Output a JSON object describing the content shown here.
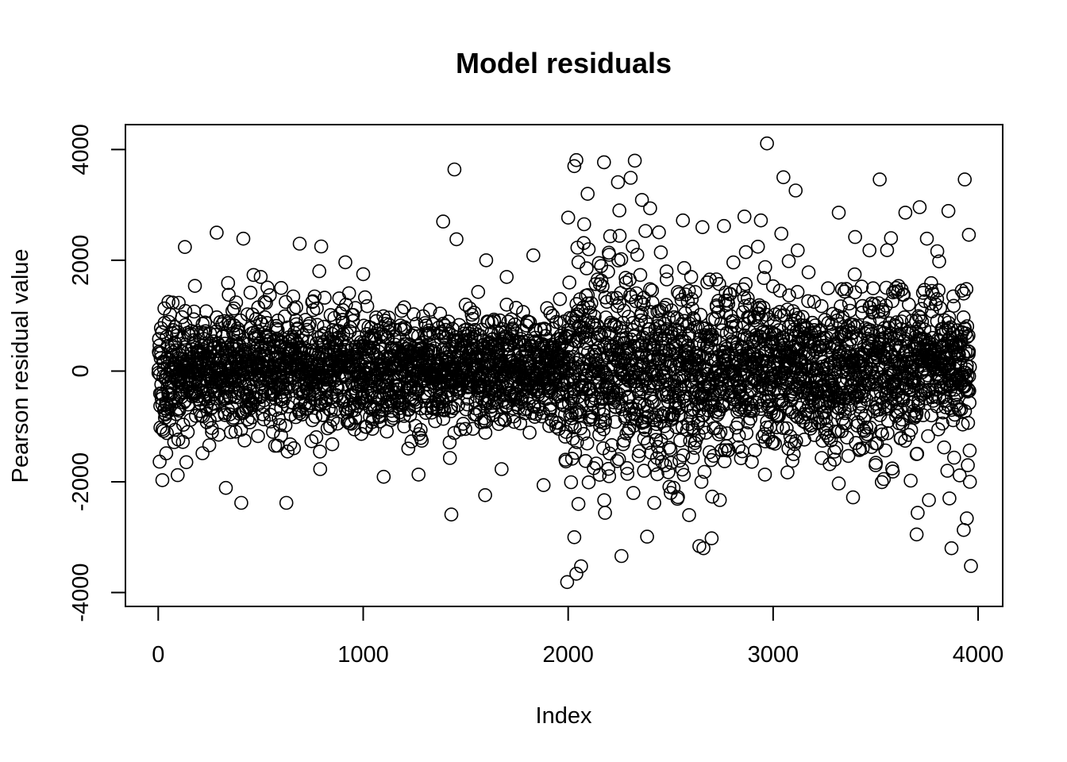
{
  "chart_data": {
    "type": "scatter",
    "title": "Model residuals",
    "xlabel": "Index",
    "ylabel": "Pearson residual value",
    "xlim": [
      -160,
      4120
    ],
    "ylim": [
      -4250,
      4450
    ],
    "x_ticks": [
      0,
      1000,
      2000,
      3000,
      4000
    ],
    "x_tick_labels": [
      "0",
      "1000",
      "2000",
      "3000",
      "4000"
    ],
    "y_ticks": [
      -4000,
      -2000,
      0,
      2000,
      4000
    ],
    "y_tick_labels": [
      "-4000",
      "-2000",
      "0",
      "2000",
      "4000"
    ],
    "grid": false,
    "legend": "none",
    "marker": "open-circle",
    "marker_color": "#000000",
    "n_points": 4000,
    "segments": [
      {
        "from": 1,
        "to": 1000,
        "sd": 700,
        "mean": 0
      },
      {
        "from": 1001,
        "to": 1980,
        "sd": 600,
        "mean": 0
      },
      {
        "from": 1981,
        "to": 2500,
        "sd": 1150,
        "mean": 0
      },
      {
        "from": 2501,
        "to": 3000,
        "sd": 1000,
        "mean": 0
      },
      {
        "from": 3001,
        "to": 3960,
        "sd": 850,
        "mean": 0
      }
    ],
    "series": [
      {
        "points": [
          [
            2970,
            4110
          ],
          [
            1445,
            3640
          ],
          [
            2040,
            3810
          ],
          [
            2325,
            3800
          ],
          [
            2175,
            3770
          ],
          [
            2030,
            3700
          ],
          [
            3520,
            3460
          ],
          [
            3935,
            3460
          ],
          [
            3050,
            3500
          ],
          [
            3110,
            3260
          ],
          [
            2305,
            3490
          ],
          [
            2360,
            3090
          ],
          [
            2095,
            3200
          ],
          [
            3715,
            2960
          ],
          [
            2400,
            2940
          ],
          [
            3320,
            2860
          ],
          [
            3855,
            2890
          ],
          [
            1390,
            2700
          ],
          [
            2560,
            2720
          ],
          [
            3645,
            2860
          ],
          [
            285,
            2500
          ],
          [
            415,
            2390
          ],
          [
            1455,
            2380
          ],
          [
            2000,
            2770
          ],
          [
            2860,
            2790
          ],
          [
            3040,
            2480
          ],
          [
            3955,
            2460
          ],
          [
            3750,
            2390
          ],
          [
            690,
            2300
          ],
          [
            130,
            2240
          ],
          [
            795,
            2250
          ],
          [
            3400,
            2420
          ],
          [
            3120,
            2180
          ],
          [
            1600,
            2000
          ],
          [
            1830,
            2090
          ],
          [
            2250,
            2900
          ],
          [
            2760,
            2620
          ],
          [
            2940,
            2720
          ],
          [
            3575,
            2400
          ],
          [
            3470,
            2180
          ],
          [
            3070,
            -1830
          ],
          [
            2030,
            -3000
          ],
          [
            2260,
            -3340
          ],
          [
            2640,
            -3160
          ],
          [
            2700,
            -3020
          ],
          [
            2420,
            -2380
          ],
          [
            2385,
            -2990
          ],
          [
            2960,
            -1870
          ],
          [
            3700,
            -2950
          ],
          [
            3870,
            -3200
          ],
          [
            3965,
            -3520
          ],
          [
            3945,
            -2660
          ],
          [
            3930,
            -2870
          ],
          [
            3705,
            -2560
          ],
          [
            3860,
            -2300
          ],
          [
            1995,
            -3810
          ],
          [
            2040,
            -3660
          ],
          [
            1430,
            -2590
          ],
          [
            625,
            -2380
          ],
          [
            405,
            -2380
          ],
          [
            330,
            -2110
          ],
          [
            20,
            -1970
          ],
          [
            95,
            -1880
          ],
          [
            790,
            -1770
          ],
          [
            1100,
            -1910
          ],
          [
            1270,
            -1870
          ],
          [
            1595,
            -2240
          ],
          [
            1675,
            -1770
          ],
          [
            1880,
            -2060
          ],
          [
            2500,
            -2200
          ],
          [
            2590,
            -2600
          ],
          [
            2665,
            -1820
          ],
          [
            2740,
            -2330
          ],
          [
            2180,
            -2560
          ],
          [
            2100,
            -2010
          ],
          [
            3390,
            -2280
          ],
          [
            3320,
            -2030
          ],
          [
            3540,
            -1950
          ],
          [
            3760,
            -2330
          ],
          [
            3960,
            -2000
          ],
          [
            3000,
            1530
          ],
          [
            3200,
            1250
          ],
          [
            3600,
            1500
          ],
          [
            3800,
            1300
          ],
          [
            2480,
            1800
          ],
          [
            2600,
            1700
          ],
          [
            2150,
            1950
          ],
          [
            2300,
            1650
          ],
          [
            1500,
            1200
          ],
          [
            900,
            1100
          ],
          [
            600,
            1500
          ],
          [
            50,
            1250
          ],
          [
            1200,
            1150
          ],
          [
            1700,
            1200
          ],
          [
            1960,
            1300
          ],
          [
            1000,
            1750
          ],
          [
            1700,
            1700
          ],
          [
            500,
            1700
          ],
          [
            2100,
            2200
          ],
          [
            2200,
            2100
          ],
          [
            2050,
            -2400
          ],
          [
            2200,
            -1900
          ],
          [
            2650,
            -2000
          ],
          [
            2850,
            -1450
          ],
          [
            3100,
            -1500
          ],
          [
            3300,
            -1600
          ],
          [
            3500,
            -1700
          ],
          [
            3700,
            -1500
          ],
          [
            3850,
            -1800
          ],
          [
            3950,
            -1700
          ]
        ]
      }
    ]
  }
}
